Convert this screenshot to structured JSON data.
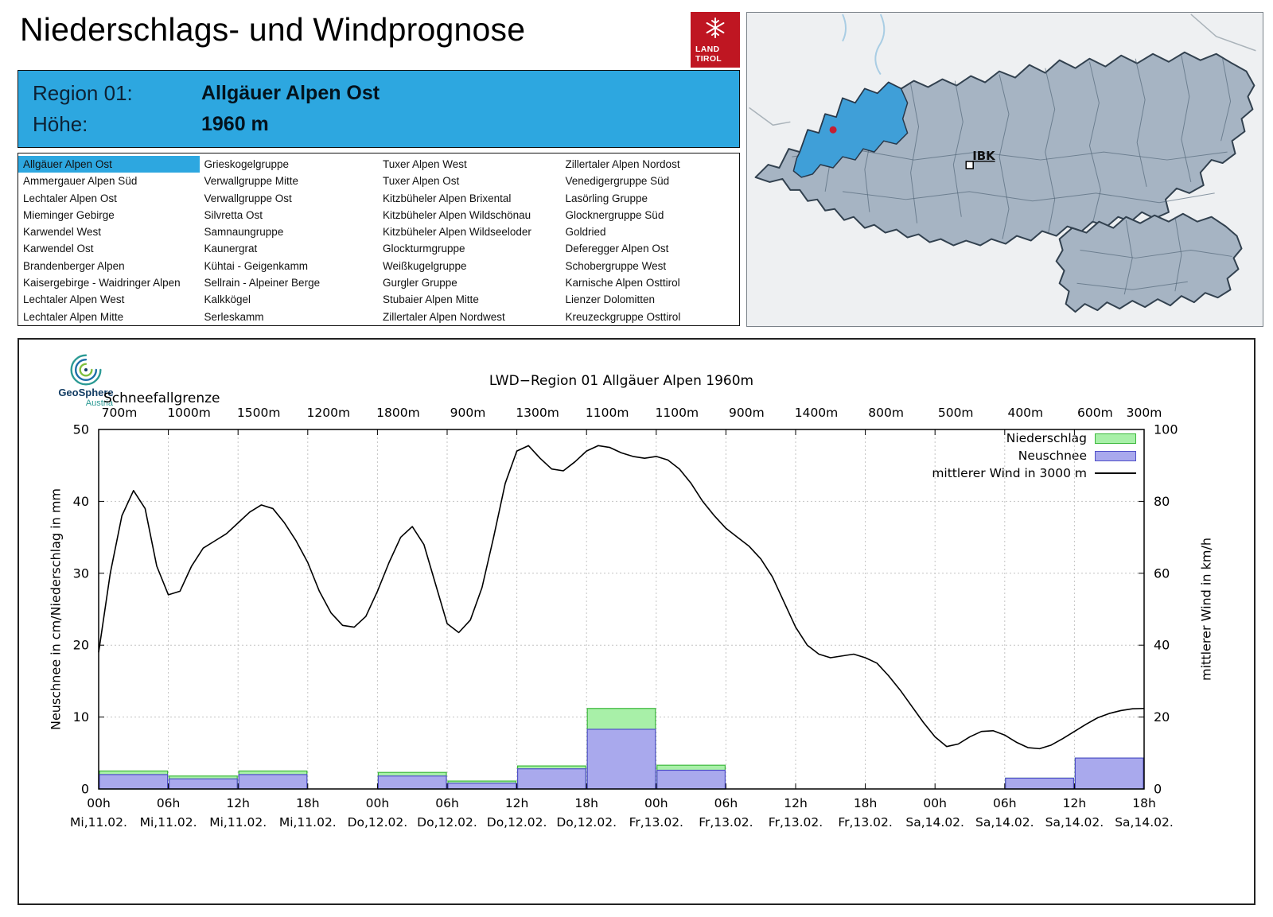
{
  "page": {
    "title": "Niederschlags- und Windprognose"
  },
  "logo": {
    "line1": "LAND",
    "line2": "TIROL"
  },
  "map": {
    "marker_label": "IBK"
  },
  "region_header": {
    "region_label": "Region 01:",
    "region_value": "Allgäuer Alpen Ost",
    "altitude_label": "Höhe:",
    "altitude_value": "1960 m"
  },
  "region_list": {
    "selected": "Allgäuer Alpen Ost",
    "columns": [
      [
        "Allgäuer Alpen Ost",
        "Ammergauer Alpen Süd",
        "Lechtaler Alpen Ost",
        "Mieminger Gebirge",
        "Karwendel West",
        "Karwendel Ost",
        "Brandenberger Alpen",
        "Kaisergebirge - Waidringer Alpen",
        "Lechtaler Alpen West",
        "Lechtaler Alpen Mitte"
      ],
      [
        "Grieskogelgruppe",
        "Verwallgruppe Mitte",
        "Verwallgruppe Ost",
        "Silvretta Ost",
        "Samnaungruppe",
        "Kaunergrat",
        "Kühtai - Geigenkamm",
        "Sellrain - Alpeiner Berge",
        "Kalkkögel",
        "Serleskamm"
      ],
      [
        "Tuxer Alpen West",
        "Tuxer Alpen Ost",
        "Kitzbüheler Alpen Brixental",
        "Kitzbüheler Alpen Wildschönau",
        "Kitzbüheler Alpen Wildseeloder",
        "Glockturmgruppe",
        "Weißkugelgruppe",
        "Gurgler Gruppe",
        "Stubaier Alpen Mitte",
        "Zillertaler Alpen Nordwest"
      ],
      [
        "Zillertaler Alpen Nordost",
        "Venedigergruppe Süd",
        "Lasörling Gruppe",
        "Glocknergruppe Süd",
        "Goldried",
        "Deferegger Alpen Ost",
        "Schobergruppe West",
        "Karnische Alpen Osttirol",
        "Lienzer Dolomitten",
        "Kreuzeckgruppe Osttirol"
      ]
    ]
  },
  "geosphere": {
    "name": "GeoSphere",
    "country": "Austria"
  },
  "chart_data": {
    "type": "composite",
    "title": "LWD−Region 01 Allgäuer Alpen 1960m",
    "snowline_label": "Schneefallgrenze",
    "snowline_values": [
      "700m",
      "1000m",
      "1500m",
      "1200m",
      "1800m",
      "900m",
      "1300m",
      "1100m",
      "1100m",
      "900m",
      "1400m",
      "800m",
      "500m",
      "400m",
      "600m",
      "300m"
    ],
    "ylabel_left": "Neuschnee in cm/Niederschlag in mm",
    "ylabel_right": "mittlerer Wind in km/h",
    "ylim_left": [
      0,
      50
    ],
    "ylim_right": [
      0,
      100
    ],
    "yticks_left": [
      0,
      10,
      20,
      30,
      40,
      50
    ],
    "yticks_right": [
      0,
      20,
      40,
      60,
      80,
      100
    ],
    "x_hours_total": 90,
    "x_ticks": [
      {
        "time": "00h",
        "date": "Mi,11.02."
      },
      {
        "time": "06h",
        "date": "Mi,11.02."
      },
      {
        "time": "12h",
        "date": "Mi,11.02."
      },
      {
        "time": "18h",
        "date": "Mi,11.02."
      },
      {
        "time": "00h",
        "date": "Do,12.02."
      },
      {
        "time": "06h",
        "date": "Do,12.02."
      },
      {
        "time": "12h",
        "date": "Do,12.02."
      },
      {
        "time": "18h",
        "date": "Do,12.02."
      },
      {
        "time": "00h",
        "date": "Fr,13.02."
      },
      {
        "time": "06h",
        "date": "Fr,13.02."
      },
      {
        "time": "12h",
        "date": "Fr,13.02."
      },
      {
        "time": "18h",
        "date": "Fr,13.02."
      },
      {
        "time": "00h",
        "date": "Sa,14.02."
      },
      {
        "time": "06h",
        "date": "Sa,14.02."
      },
      {
        "time": "12h",
        "date": "Sa,14.02."
      },
      {
        "time": "18h",
        "date": "Sa,14.02."
      }
    ],
    "legend": [
      {
        "label": "Niederschlag",
        "type": "bar",
        "color": "#a8f0a8",
        "border": "#3cb83c"
      },
      {
        "label": "Neuschnee",
        "type": "bar",
        "color": "#a9a9ed",
        "border": "#5050c8"
      },
      {
        "label": "mittlerer Wind in 3000 m",
        "type": "line",
        "color": "#000000"
      }
    ],
    "bars": {
      "bin_hours": 6,
      "niederschlag_mm": [
        2.5,
        1.8,
        2.5,
        0,
        2.3,
        1.1,
        3.2,
        11.2,
        3.3,
        0,
        0,
        0,
        0,
        1.5,
        4.3
      ],
      "neuschnee_cm": [
        2.0,
        1.4,
        2.0,
        0,
        1.8,
        0.8,
        2.8,
        8.3,
        2.6,
        0,
        0,
        0,
        0,
        1.5,
        4.3
      ]
    },
    "wind": {
      "step_hours": 1,
      "kmh": [
        38,
        60,
        76,
        83,
        78,
        62,
        54,
        55,
        62,
        67,
        69,
        71,
        74,
        77,
        79,
        78,
        74,
        69,
        63,
        55,
        49,
        45.5,
        45,
        48,
        55,
        63,
        70,
        73,
        68,
        57,
        46,
        43.5,
        47,
        56,
        70,
        85,
        94,
        95.5,
        92,
        89,
        88.5,
        91,
        94,
        95.5,
        95,
        93.5,
        92.5,
        92,
        92.5,
        91.5,
        89,
        85,
        80,
        76,
        72.5,
        70,
        67.5,
        64,
        59,
        52,
        45,
        40,
        37.5,
        36.5,
        37,
        37.5,
        36.5,
        35,
        31.5,
        27.5,
        23,
        18.5,
        14.5,
        11.8,
        12.5,
        14.5,
        16,
        16.2,
        15,
        13,
        11.5,
        11.2,
        12.2,
        14,
        16,
        18,
        19.8,
        21,
        21.8,
        22.3,
        22.4
      ]
    }
  }
}
